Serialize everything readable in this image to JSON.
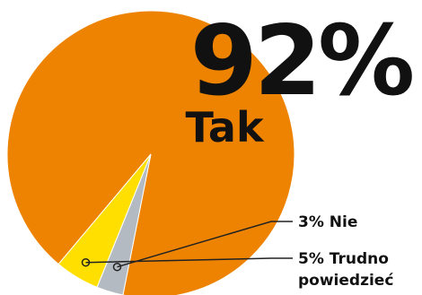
{
  "chart_data": {
    "type": "pie",
    "series": [
      {
        "label": "Tak",
        "value": 92,
        "color": "#ed8300"
      },
      {
        "label": "Nie",
        "value": 3,
        "color": "#b3bac2"
      },
      {
        "label": "Trudno powiedzieć",
        "value": 5,
        "color": "#ffdf00"
      }
    ],
    "big_label": {
      "value_text": "92%",
      "name_text": "Tak"
    },
    "callouts": [
      {
        "text_lines": [
          "3% Nie"
        ]
      },
      {
        "text_lines": [
          "5% Trudno",
          "powiedzieć"
        ]
      }
    ],
    "annotation_color": "#222222"
  }
}
